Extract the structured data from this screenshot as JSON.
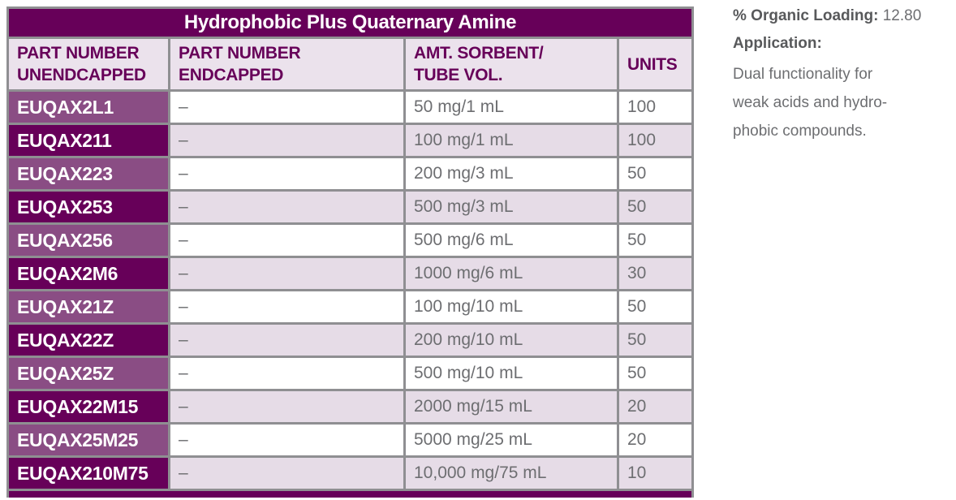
{
  "table": {
    "title": "Hydrophobic Plus Quaternary Amine",
    "columns": {
      "part_unendcapped": "PART NUMBER\nUNENDCAPPED",
      "part_endcapped": "PART NUMBER\nENDCAPPED",
      "amt_sorbent": "AMT. SORBENT/\nTUBE VOL.",
      "units": "UNITS"
    },
    "rows": [
      {
        "part_unendcapped": "EUQAX2L1",
        "part_endcapped": "–",
        "amt_sorbent": "50 mg/1 mL",
        "units": "100"
      },
      {
        "part_unendcapped": "EUQAX211",
        "part_endcapped": "–",
        "amt_sorbent": "100 mg/1 mL",
        "units": "100"
      },
      {
        "part_unendcapped": "EUQAX223",
        "part_endcapped": "–",
        "amt_sorbent": "200 mg/3 mL",
        "units": "50"
      },
      {
        "part_unendcapped": "EUQAX253",
        "part_endcapped": "–",
        "amt_sorbent": "500 mg/3 mL",
        "units": "50"
      },
      {
        "part_unendcapped": "EUQAX256",
        "part_endcapped": "–",
        "amt_sorbent": "500 mg/6 mL",
        "units": "50"
      },
      {
        "part_unendcapped": "EUQAX2M6",
        "part_endcapped": "–",
        "amt_sorbent": "1000 mg/6 mL",
        "units": "30"
      },
      {
        "part_unendcapped": "EUQAX21Z",
        "part_endcapped": "–",
        "amt_sorbent": "100 mg/10 mL",
        "units": "50"
      },
      {
        "part_unendcapped": "EUQAX22Z",
        "part_endcapped": "–",
        "amt_sorbent": "200 mg/10 mL",
        "units": "50"
      },
      {
        "part_unendcapped": "EUQAX25Z",
        "part_endcapped": "–",
        "amt_sorbent": "500 mg/10 mL",
        "units": "50"
      },
      {
        "part_unendcapped": "EUQAX22M15",
        "part_endcapped": "–",
        "amt_sorbent": "2000 mg/15 mL",
        "units": "20"
      },
      {
        "part_unendcapped": "EUQAX25M25",
        "part_endcapped": "–",
        "amt_sorbent": "5000 mg/25 mL",
        "units": "20"
      },
      {
        "part_unendcapped": "EUQAX210M75",
        "part_endcapped": "–",
        "amt_sorbent": "10,000 mg/75 mL",
        "units": "10"
      }
    ]
  },
  "side_panel": {
    "organic_loading_label": "% Organic Loading:",
    "organic_loading_value": "12.80",
    "application_label": "Application:",
    "application_text": "Dual functionality for\nweak acids and hydro-\nphobic compounds."
  },
  "colors": {
    "dark_purple": "#670059",
    "medium_purple": "#8a4d84",
    "lavender_row": "#e6dce7",
    "lavender_header": "#ebe2ec",
    "border_gray": "#8f8f92",
    "text_gray": "#6d6e71",
    "label_gray": "#58595b"
  }
}
